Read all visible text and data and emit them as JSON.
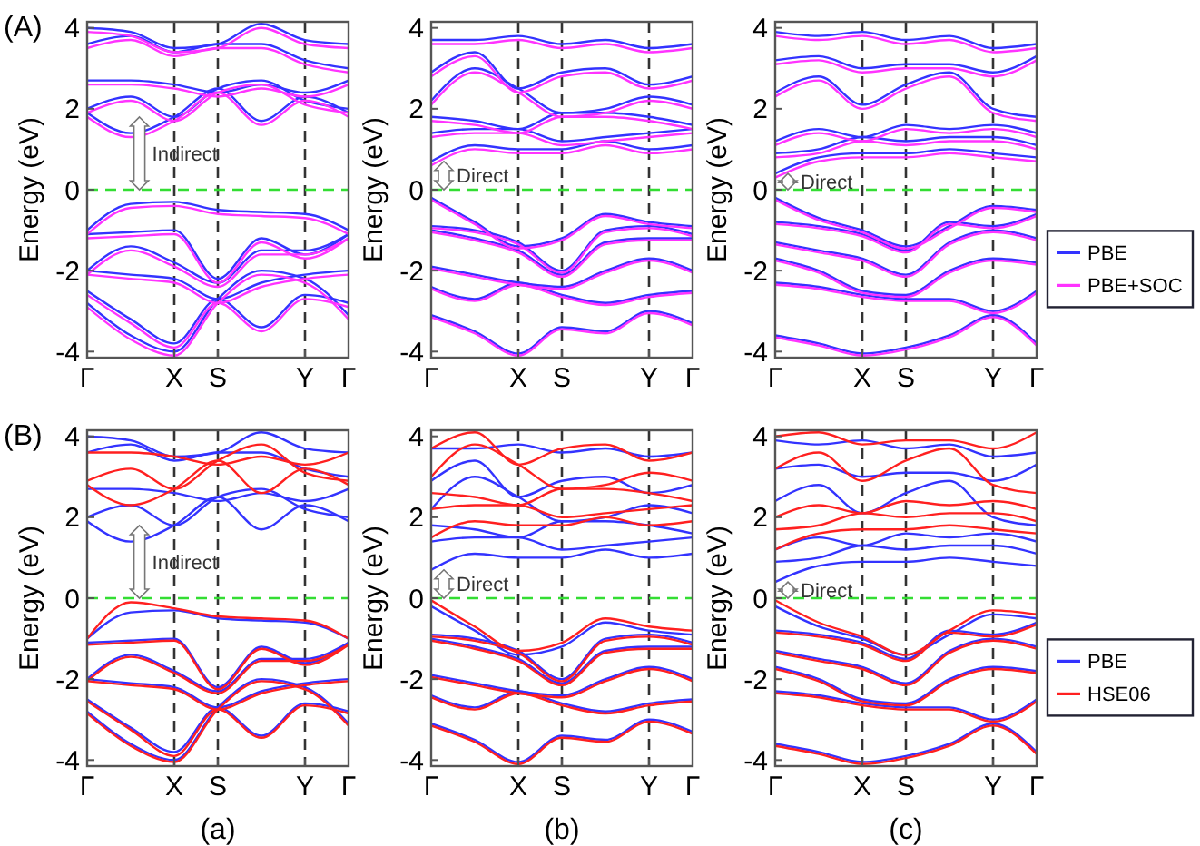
{
  "chart_data": [
    {
      "type": "line",
      "title": "(A)",
      "ylabel": "Energy (eV)",
      "categories": [
        "Γ",
        null,
        "X",
        "S",
        null,
        "Y",
        "Γ"
      ],
      "ylim": [
        -4.15,
        4.15
      ],
      "yticks": [
        -4,
        -2,
        0,
        2,
        4
      ],
      "ref_lines": [
        {
          "axis": "x",
          "value": "X",
          "color": "#333333",
          "line_style": "dashed"
        },
        {
          "axis": "x",
          "value": "S",
          "color": "#333333",
          "line_style": "dashed"
        },
        {
          "axis": "x",
          "value": "Y",
          "color": "#333333",
          "line_style": "dashed"
        },
        {
          "axis": "y",
          "value": 0,
          "color": "#33dd33",
          "line_style": "dashed"
        }
      ],
      "annotations": [
        "Indirect"
      ],
      "series": [
        {
          "color": "#3333ff",
          "values": [
            1.9,
            1.4,
            1.8,
            2.5,
            1.7,
            2.3,
            1.9
          ]
        },
        {
          "color": "#3333ff",
          "values": [
            2.0,
            2.3,
            1.8,
            2.5,
            2.7,
            2.2,
            2.0
          ]
        },
        {
          "color": "#3333ff",
          "values": [
            2.7,
            2.7,
            2.6,
            2.4,
            2.6,
            2.4,
            2.7
          ]
        },
        {
          "color": "#3333ff",
          "values": [
            3.6,
            3.8,
            3.4,
            3.6,
            3.6,
            3.2,
            3.0
          ]
        },
        {
          "color": "#3333ff",
          "values": [
            4.0,
            3.9,
            3.5,
            3.6,
            4.1,
            3.7,
            3.6
          ]
        },
        {
          "color": "#3333ff",
          "values": [
            -1.0,
            -0.35,
            -0.3,
            -0.5,
            -0.55,
            -0.6,
            -1.0
          ]
        },
        {
          "color": "#3333ff",
          "values": [
            -1.1,
            -1.05,
            -1.0,
            -2.2,
            -1.2,
            -1.6,
            -1.1
          ]
        },
        {
          "color": "#3333ff",
          "values": [
            -2.0,
            -1.4,
            -1.8,
            -2.3,
            -1.5,
            -1.5,
            -1.1
          ]
        },
        {
          "color": "#3333ff",
          "values": [
            -2.0,
            -2.1,
            -2.2,
            -2.7,
            -2.3,
            -2.1,
            -2.0
          ]
        },
        {
          "color": "#3333ff",
          "values": [
            -2.5,
            -3.2,
            -3.8,
            -2.7,
            -3.4,
            -2.6,
            -2.8
          ]
        },
        {
          "color": "#3333ff",
          "values": [
            -2.8,
            -3.6,
            -4.0,
            -2.7,
            -2.0,
            -2.2,
            -3.1
          ]
        },
        {
          "color": "#ff33ff",
          "values": [
            1.8,
            1.3,
            1.7,
            2.4,
            1.6,
            2.2,
            1.8
          ]
        },
        {
          "color": "#ff33ff",
          "values": [
            1.9,
            2.2,
            1.7,
            2.4,
            2.6,
            2.1,
            1.9
          ]
        },
        {
          "color": "#ff33ff",
          "values": [
            2.6,
            2.6,
            2.5,
            2.3,
            2.5,
            2.3,
            2.6
          ]
        },
        {
          "color": "#ff33ff",
          "values": [
            3.5,
            3.7,
            3.3,
            3.5,
            3.5,
            3.1,
            2.9
          ]
        },
        {
          "color": "#ff33ff",
          "values": [
            3.9,
            3.8,
            3.4,
            3.5,
            4.0,
            3.6,
            3.5
          ]
        },
        {
          "color": "#ff33ff",
          "values": [
            -1.1,
            -0.45,
            -0.4,
            -0.6,
            -0.65,
            -0.7,
            -1.1
          ]
        },
        {
          "color": "#ff33ff",
          "values": [
            -1.2,
            -1.15,
            -1.1,
            -2.3,
            -1.3,
            -1.7,
            -1.2
          ]
        },
        {
          "color": "#ff33ff",
          "values": [
            -2.1,
            -1.5,
            -1.9,
            -2.4,
            -1.6,
            -1.6,
            -1.2
          ]
        },
        {
          "color": "#ff33ff",
          "values": [
            -2.1,
            -2.2,
            -2.3,
            -2.8,
            -2.4,
            -2.2,
            -2.1
          ]
        },
        {
          "color": "#ff33ff",
          "values": [
            -2.6,
            -3.3,
            -3.9,
            -2.8,
            -3.5,
            -2.7,
            -2.9
          ]
        },
        {
          "color": "#ff33ff",
          "values": [
            -2.9,
            -3.7,
            -4.1,
            -2.8,
            -2.1,
            -2.3,
            -3.2
          ]
        }
      ]
    },
    {
      "type": "line",
      "ylabel": "Energy (eV)",
      "categories": [
        "Γ",
        null,
        "X",
        "S",
        null,
        "Y",
        "Γ"
      ],
      "ylim": [
        -4.15,
        4.15
      ],
      "yticks": [
        -4,
        -2,
        0,
        2,
        4
      ],
      "ref_lines": [
        {
          "axis": "x",
          "value": "X",
          "color": "#333333",
          "line_style": "dashed"
        },
        {
          "axis": "x",
          "value": "S",
          "color": "#333333",
          "line_style": "dashed"
        },
        {
          "axis": "x",
          "value": "Y",
          "color": "#333333",
          "line_style": "dashed"
        },
        {
          "axis": "y",
          "value": 0,
          "color": "#33dd33",
          "line_style": "dashed"
        }
      ],
      "annotations": [
        {
          "text": "Direct",
          "x": "Γ",
          "y": 0.7
        }
      ],
      "series": [
        {
          "color": "#3333ff",
          "values": [
            0.7,
            1.1,
            1.0,
            1.0,
            1.2,
            1.0,
            1.1
          ]
        },
        {
          "color": "#3333ff",
          "values": [
            1.4,
            1.5,
            1.5,
            1.2,
            1.3,
            1.4,
            1.5
          ]
        },
        {
          "color": "#3333ff",
          "values": [
            1.8,
            1.7,
            1.5,
            1.9,
            1.9,
            1.8,
            1.6
          ]
        },
        {
          "color": "#3333ff",
          "values": [
            2.2,
            3.0,
            2.5,
            1.9,
            2.0,
            2.3,
            2.1
          ]
        },
        {
          "color": "#3333ff",
          "values": [
            2.9,
            3.4,
            2.5,
            2.9,
            3.0,
            2.6,
            2.8
          ]
        },
        {
          "color": "#3333ff",
          "values": [
            3.7,
            3.7,
            3.8,
            3.6,
            3.7,
            3.5,
            3.6
          ]
        },
        {
          "color": "#3333ff",
          "values": [
            -0.2,
            -0.8,
            -1.4,
            -1.2,
            -0.6,
            -0.8,
            -0.9
          ]
        },
        {
          "color": "#3333ff",
          "values": [
            -0.9,
            -1.0,
            -1.3,
            -2.0,
            -1.0,
            -0.9,
            -1.1
          ]
        },
        {
          "color": "#3333ff",
          "values": [
            -1.0,
            -1.2,
            -1.5,
            -2.1,
            -1.3,
            -1.2,
            -1.2
          ]
        },
        {
          "color": "#3333ff",
          "values": [
            -1.9,
            -2.1,
            -2.3,
            -2.4,
            -2.0,
            -1.7,
            -2.0
          ]
        },
        {
          "color": "#3333ff",
          "values": [
            -2.4,
            -2.7,
            -2.3,
            -2.6,
            -2.8,
            -2.6,
            -2.5
          ]
        },
        {
          "color": "#3333ff",
          "values": [
            -3.1,
            -3.5,
            -4.05,
            -3.4,
            -3.5,
            -3.0,
            -3.3
          ]
        },
        {
          "color": "#ff33ff",
          "values": [
            0.6,
            1.0,
            0.9,
            0.9,
            1.1,
            0.9,
            1.0
          ]
        },
        {
          "color": "#ff33ff",
          "values": [
            1.3,
            1.4,
            1.4,
            1.1,
            1.2,
            1.3,
            1.4
          ]
        },
        {
          "color": "#ff33ff",
          "values": [
            1.7,
            1.6,
            1.4,
            1.8,
            1.8,
            1.7,
            1.5
          ]
        },
        {
          "color": "#ff33ff",
          "values": [
            2.1,
            2.9,
            2.4,
            1.8,
            1.9,
            2.2,
            2.0
          ]
        },
        {
          "color": "#ff33ff",
          "values": [
            2.8,
            3.3,
            2.4,
            2.8,
            2.9,
            2.5,
            2.7
          ]
        },
        {
          "color": "#ff33ff",
          "values": [
            3.6,
            3.6,
            3.7,
            3.5,
            3.6,
            3.4,
            3.5
          ]
        },
        {
          "color": "#ff33ff",
          "values": [
            -0.25,
            -0.85,
            -1.45,
            -1.25,
            -0.65,
            -0.85,
            -0.95
          ]
        },
        {
          "color": "#ff33ff",
          "values": [
            -0.95,
            -1.05,
            -1.35,
            -2.05,
            -1.05,
            -0.95,
            -1.15
          ]
        },
        {
          "color": "#ff33ff",
          "values": [
            -1.05,
            -1.25,
            -1.55,
            -2.15,
            -1.35,
            -1.25,
            -1.25
          ]
        },
        {
          "color": "#ff33ff",
          "values": [
            -1.95,
            -2.15,
            -2.35,
            -2.45,
            -2.05,
            -1.75,
            -2.05
          ]
        },
        {
          "color": "#ff33ff",
          "values": [
            -2.45,
            -2.75,
            -2.35,
            -2.65,
            -2.85,
            -2.65,
            -2.55
          ]
        },
        {
          "color": "#ff33ff",
          "values": [
            -3.15,
            -3.55,
            -4.1,
            -3.45,
            -3.55,
            -3.05,
            -3.35
          ]
        }
      ]
    },
    {
      "type": "line",
      "ylabel": "Energy (eV)",
      "legend": "right",
      "categories": [
        "Γ",
        null,
        "X",
        "S",
        null,
        "Y",
        "Γ"
      ],
      "ylim": [
        -4.15,
        4.15
      ],
      "yticks": [
        -4,
        -2,
        0,
        2,
        4
      ],
      "ref_lines": [
        {
          "axis": "x",
          "value": "X",
          "color": "#333333",
          "line_style": "dashed"
        },
        {
          "axis": "x",
          "value": "S",
          "color": "#333333",
          "line_style": "dashed"
        },
        {
          "axis": "x",
          "value": "Y",
          "color": "#333333",
          "line_style": "dashed"
        },
        {
          "axis": "y",
          "value": 0,
          "color": "#33dd33",
          "line_style": "dashed"
        }
      ],
      "annotations": [
        {
          "text": "Direct",
          "x": "Γ",
          "y": 0.4
        }
      ],
      "series": [
        {
          "name": "PBE",
          "color": "#3333ff",
          "values": [
            0.4,
            0.8,
            0.9,
            0.9,
            1.0,
            0.9,
            0.8
          ]
        },
        {
          "color": "#3333ff",
          "values": [
            0.9,
            1.0,
            1.3,
            1.2,
            1.3,
            1.3,
            1.1
          ]
        },
        {
          "color": "#3333ff",
          "values": [
            1.2,
            1.5,
            1.3,
            1.6,
            1.5,
            1.6,
            1.4
          ]
        },
        {
          "color": "#3333ff",
          "values": [
            2.4,
            2.8,
            2.1,
            2.6,
            2.9,
            2.0,
            1.8
          ]
        },
        {
          "color": "#3333ff",
          "values": [
            3.2,
            3.3,
            3.0,
            3.1,
            3.1,
            2.9,
            3.3
          ]
        },
        {
          "color": "#3333ff",
          "values": [
            3.9,
            3.8,
            3.9,
            3.7,
            3.8,
            3.5,
            3.6
          ]
        },
        {
          "color": "#3333ff",
          "values": [
            -0.2,
            -0.7,
            -1.0,
            -1.4,
            -0.9,
            -0.4,
            -0.5
          ]
        },
        {
          "color": "#3333ff",
          "values": [
            -0.8,
            -0.9,
            -1.1,
            -1.5,
            -0.8,
            -0.9,
            -0.6
          ]
        },
        {
          "color": "#3333ff",
          "values": [
            -1.3,
            -1.5,
            -1.7,
            -2.1,
            -1.3,
            -1.0,
            -1.2
          ]
        },
        {
          "color": "#3333ff",
          "values": [
            -1.7,
            -2.0,
            -2.5,
            -2.6,
            -2.0,
            -1.7,
            -1.8
          ]
        },
        {
          "color": "#3333ff",
          "values": [
            -2.3,
            -2.4,
            -2.6,
            -2.7,
            -2.7,
            -3.0,
            -2.5
          ]
        },
        {
          "color": "#3333ff",
          "values": [
            -3.6,
            -3.8,
            -4.05,
            -3.9,
            -3.6,
            -3.1,
            -3.8
          ]
        },
        {
          "name": "PBE+SOC",
          "color": "#ff33ff",
          "values": [
            0.3,
            0.7,
            0.8,
            0.8,
            0.9,
            0.8,
            0.7
          ]
        },
        {
          "color": "#ff33ff",
          "values": [
            0.8,
            0.9,
            1.2,
            1.1,
            1.2,
            1.2,
            1.0
          ]
        },
        {
          "color": "#ff33ff",
          "values": [
            1.1,
            1.4,
            1.2,
            1.5,
            1.4,
            1.5,
            1.3
          ]
        },
        {
          "color": "#ff33ff",
          "values": [
            2.3,
            2.7,
            2.0,
            2.5,
            2.8,
            1.9,
            1.7
          ]
        },
        {
          "color": "#ff33ff",
          "values": [
            3.1,
            3.2,
            2.9,
            3.0,
            3.0,
            2.8,
            3.2
          ]
        },
        {
          "color": "#ff33ff",
          "values": [
            3.8,
            3.7,
            3.8,
            3.6,
            3.7,
            3.4,
            3.5
          ]
        },
        {
          "color": "#ff33ff",
          "values": [
            -0.25,
            -0.75,
            -1.05,
            -1.45,
            -0.95,
            -0.45,
            -0.55
          ]
        },
        {
          "color": "#ff33ff",
          "values": [
            -0.85,
            -0.95,
            -1.15,
            -1.55,
            -0.85,
            -0.95,
            -0.65
          ]
        },
        {
          "color": "#ff33ff",
          "values": [
            -1.35,
            -1.55,
            -1.75,
            -2.15,
            -1.35,
            -1.05,
            -1.25
          ]
        },
        {
          "color": "#ff33ff",
          "values": [
            -1.75,
            -2.05,
            -2.55,
            -2.65,
            -2.05,
            -1.75,
            -1.85
          ]
        },
        {
          "color": "#ff33ff",
          "values": [
            -2.35,
            -2.45,
            -2.65,
            -2.75,
            -2.75,
            -3.05,
            -2.55
          ]
        },
        {
          "color": "#ff33ff",
          "values": [
            -3.65,
            -3.85,
            -4.1,
            -3.95,
            -3.65,
            -3.15,
            -3.85
          ]
        }
      ]
    },
    {
      "type": "line",
      "title": "(B)",
      "xlabel": "(a)",
      "ylabel": "Energy (eV)",
      "categories": [
        "Γ",
        null,
        "X",
        "S",
        null,
        "Y",
        "Γ"
      ],
      "ylim": [
        -4.15,
        4.15
      ],
      "yticks": [
        -4,
        -2,
        0,
        2,
        4
      ],
      "ref_lines": [
        {
          "axis": "x",
          "value": "X",
          "color": "#333333",
          "line_style": "dashed"
        },
        {
          "axis": "x",
          "value": "S",
          "color": "#333333",
          "line_style": "dashed"
        },
        {
          "axis": "x",
          "value": "Y",
          "color": "#333333",
          "line_style": "dashed"
        },
        {
          "axis": "y",
          "value": 0,
          "color": "#33dd33",
          "line_style": "dashed"
        }
      ],
      "annotations": [
        "Indirect"
      ],
      "series": [
        {
          "color": "#3333ff",
          "values": [
            1.9,
            1.4,
            1.8,
            2.5,
            1.7,
            2.3,
            1.9
          ]
        },
        {
          "color": "#3333ff",
          "values": [
            2.0,
            2.3,
            1.8,
            2.5,
            2.7,
            2.2,
            2.0
          ]
        },
        {
          "color": "#3333ff",
          "values": [
            2.7,
            2.7,
            2.6,
            2.4,
            2.6,
            2.4,
            2.7
          ]
        },
        {
          "color": "#3333ff",
          "values": [
            3.6,
            3.8,
            3.4,
            3.6,
            3.6,
            3.2,
            3.0
          ]
        },
        {
          "color": "#3333ff",
          "values": [
            4.0,
            3.9,
            3.5,
            3.6,
            4.1,
            3.7,
            3.6
          ]
        },
        {
          "color": "#3333ff",
          "values": [
            -1.0,
            -0.35,
            -0.3,
            -0.5,
            -0.55,
            -0.6,
            -1.0
          ]
        },
        {
          "color": "#3333ff",
          "values": [
            -1.1,
            -1.05,
            -1.0,
            -2.2,
            -1.2,
            -1.6,
            -1.1
          ]
        },
        {
          "color": "#3333ff",
          "values": [
            -2.0,
            -1.4,
            -1.8,
            -2.3,
            -1.5,
            -1.5,
            -1.1
          ]
        },
        {
          "color": "#3333ff",
          "values": [
            -2.0,
            -2.1,
            -2.2,
            -2.7,
            -2.3,
            -2.1,
            -2.0
          ]
        },
        {
          "color": "#3333ff",
          "values": [
            -2.5,
            -3.2,
            -3.8,
            -2.7,
            -3.4,
            -2.6,
            -2.8
          ]
        },
        {
          "color": "#3333ff",
          "values": [
            -2.8,
            -3.6,
            -4.0,
            -2.7,
            -2.0,
            -2.2,
            -3.1
          ]
        },
        {
          "color": "#ff2020",
          "values": [
            2.8,
            2.3,
            2.7,
            3.4,
            2.6,
            3.2,
            2.8
          ]
        },
        {
          "color": "#ff2020",
          "values": [
            2.9,
            3.2,
            2.7,
            3.4,
            3.8,
            3.1,
            2.9
          ]
        },
        {
          "color": "#ff2020",
          "values": [
            3.6,
            3.6,
            3.5,
            3.3,
            3.5,
            3.3,
            3.6
          ]
        },
        {
          "color": "#ff2020",
          "values": [
            -1.0,
            -0.1,
            -0.25,
            -0.45,
            -0.5,
            -0.55,
            -1.0
          ]
        },
        {
          "color": "#ff2020",
          "values": [
            -1.15,
            -1.1,
            -1.05,
            -2.25,
            -1.25,
            -1.65,
            -1.15
          ]
        },
        {
          "color": "#ff2020",
          "values": [
            -2.05,
            -1.45,
            -1.85,
            -2.35,
            -1.55,
            -1.55,
            -1.15
          ]
        },
        {
          "color": "#ff2020",
          "values": [
            -2.05,
            -2.15,
            -2.25,
            -2.75,
            -2.35,
            -2.15,
            -2.05
          ]
        },
        {
          "color": "#ff2020",
          "values": [
            -2.55,
            -3.25,
            -3.9,
            -2.75,
            -3.45,
            -2.65,
            -2.85
          ]
        },
        {
          "color": "#ff2020",
          "values": [
            -2.85,
            -3.65,
            -4.05,
            -2.75,
            -2.05,
            -2.25,
            -3.15
          ]
        }
      ]
    },
    {
      "type": "line",
      "xlabel": "(b)",
      "ylabel": "Energy (eV)",
      "categories": [
        "Γ",
        null,
        "X",
        "S",
        null,
        "Y",
        "Γ"
      ],
      "ylim": [
        -4.15,
        4.15
      ],
      "yticks": [
        -4,
        -2,
        0,
        2,
        4
      ],
      "ref_lines": [
        {
          "axis": "x",
          "value": "X",
          "color": "#333333",
          "line_style": "dashed"
        },
        {
          "axis": "x",
          "value": "S",
          "color": "#333333",
          "line_style": "dashed"
        },
        {
          "axis": "x",
          "value": "Y",
          "color": "#333333",
          "line_style": "dashed"
        },
        {
          "axis": "y",
          "value": 0,
          "color": "#33dd33",
          "line_style": "dashed"
        }
      ],
      "annotations": [
        {
          "text": "Direct",
          "x": "Γ",
          "y": 0.7
        }
      ],
      "series": [
        {
          "color": "#3333ff",
          "values": [
            0.7,
            1.1,
            1.0,
            1.0,
            1.2,
            1.0,
            1.1
          ]
        },
        {
          "color": "#3333ff",
          "values": [
            1.4,
            1.5,
            1.5,
            1.2,
            1.3,
            1.4,
            1.5
          ]
        },
        {
          "color": "#3333ff",
          "values": [
            1.8,
            1.7,
            1.5,
            1.9,
            1.9,
            1.8,
            1.6
          ]
        },
        {
          "color": "#3333ff",
          "values": [
            2.2,
            3.0,
            2.5,
            1.9,
            2.0,
            2.3,
            2.1
          ]
        },
        {
          "color": "#3333ff",
          "values": [
            2.9,
            3.4,
            2.5,
            2.9,
            3.0,
            2.6,
            2.8
          ]
        },
        {
          "color": "#3333ff",
          "values": [
            3.7,
            3.7,
            3.8,
            3.6,
            3.7,
            3.5,
            3.6
          ]
        },
        {
          "color": "#3333ff",
          "values": [
            -0.2,
            -0.8,
            -1.4,
            -1.2,
            -0.6,
            -0.8,
            -0.9
          ]
        },
        {
          "color": "#3333ff",
          "values": [
            -0.9,
            -1.0,
            -1.3,
            -2.0,
            -1.0,
            -0.9,
            -1.1
          ]
        },
        {
          "color": "#3333ff",
          "values": [
            -1.0,
            -1.2,
            -1.5,
            -2.1,
            -1.3,
            -1.2,
            -1.2
          ]
        },
        {
          "color": "#3333ff",
          "values": [
            -1.9,
            -2.1,
            -2.3,
            -2.4,
            -2.0,
            -1.7,
            -2.0
          ]
        },
        {
          "color": "#3333ff",
          "values": [
            -2.4,
            -2.7,
            -2.3,
            -2.6,
            -2.8,
            -2.6,
            -2.5
          ]
        },
        {
          "color": "#3333ff",
          "values": [
            -3.1,
            -3.5,
            -4.05,
            -3.4,
            -3.5,
            -3.0,
            -3.3
          ]
        },
        {
          "color": "#ff2020",
          "values": [
            1.5,
            1.9,
            1.8,
            1.8,
            2.0,
            1.8,
            1.9
          ]
        },
        {
          "color": "#ff2020",
          "values": [
            2.2,
            2.3,
            2.3,
            2.0,
            2.1,
            2.2,
            2.3
          ]
        },
        {
          "color": "#ff2020",
          "values": [
            2.6,
            2.5,
            2.3,
            2.7,
            2.7,
            2.6,
            2.4
          ]
        },
        {
          "color": "#ff2020",
          "values": [
            3.0,
            3.8,
            3.3,
            2.7,
            2.8,
            3.1,
            2.9
          ]
        },
        {
          "color": "#ff2020",
          "values": [
            3.7,
            4.1,
            3.3,
            3.7,
            3.8,
            3.4,
            3.6
          ]
        },
        {
          "color": "#ff2020",
          "values": [
            -0.05,
            -0.7,
            -1.3,
            -1.1,
            -0.5,
            -0.7,
            -0.8
          ]
        },
        {
          "color": "#ff2020",
          "values": [
            -0.95,
            -1.05,
            -1.35,
            -2.05,
            -1.05,
            -0.95,
            -1.15
          ]
        },
        {
          "color": "#ff2020",
          "values": [
            -1.05,
            -1.25,
            -1.55,
            -2.15,
            -1.35,
            -1.25,
            -1.25
          ]
        },
        {
          "color": "#ff2020",
          "values": [
            -1.95,
            -2.15,
            -2.35,
            -2.45,
            -2.05,
            -1.75,
            -2.05
          ]
        },
        {
          "color": "#ff2020",
          "values": [
            -2.45,
            -2.75,
            -2.35,
            -2.65,
            -2.85,
            -2.65,
            -2.55
          ]
        },
        {
          "color": "#ff2020",
          "values": [
            -3.15,
            -3.55,
            -4.1,
            -3.45,
            -3.55,
            -3.05,
            -3.35
          ]
        }
      ]
    },
    {
      "type": "line",
      "xlabel": "(c)",
      "ylabel": "Energy (eV)",
      "legend": "right",
      "categories": [
        "Γ",
        null,
        "X",
        "S",
        null,
        "Y",
        "Γ"
      ],
      "ylim": [
        -4.15,
        4.15
      ],
      "yticks": [
        -4,
        -2,
        0,
        2,
        4
      ],
      "ref_lines": [
        {
          "axis": "x",
          "value": "X",
          "color": "#333333",
          "line_style": "dashed"
        },
        {
          "axis": "x",
          "value": "S",
          "color": "#333333",
          "line_style": "dashed"
        },
        {
          "axis": "x",
          "value": "Y",
          "color": "#333333",
          "line_style": "dashed"
        },
        {
          "axis": "y",
          "value": 0,
          "color": "#33dd33",
          "line_style": "dashed"
        }
      ],
      "annotations": [
        {
          "text": "Direct",
          "x": "Γ",
          "y": 0.4
        }
      ],
      "series": [
        {
          "name": "PBE",
          "color": "#3333ff",
          "values": [
            0.4,
            0.8,
            0.9,
            0.9,
            1.0,
            0.9,
            0.8
          ]
        },
        {
          "color": "#3333ff",
          "values": [
            0.9,
            1.0,
            1.3,
            1.2,
            1.3,
            1.3,
            1.1
          ]
        },
        {
          "color": "#3333ff",
          "values": [
            1.2,
            1.5,
            1.3,
            1.6,
            1.5,
            1.6,
            1.4
          ]
        },
        {
          "color": "#3333ff",
          "values": [
            2.4,
            2.8,
            2.1,
            2.6,
            2.9,
            2.0,
            1.8
          ]
        },
        {
          "color": "#3333ff",
          "values": [
            3.2,
            3.3,
            3.0,
            3.1,
            3.1,
            2.9,
            3.3
          ]
        },
        {
          "color": "#3333ff",
          "values": [
            3.9,
            3.8,
            3.9,
            3.7,
            3.8,
            3.5,
            3.6
          ]
        },
        {
          "color": "#3333ff",
          "values": [
            -0.2,
            -0.7,
            -1.0,
            -1.4,
            -0.9,
            -0.4,
            -0.5
          ]
        },
        {
          "color": "#3333ff",
          "values": [
            -0.8,
            -0.9,
            -1.1,
            -1.5,
            -0.8,
            -0.9,
            -0.6
          ]
        },
        {
          "color": "#3333ff",
          "values": [
            -1.3,
            -1.5,
            -1.7,
            -2.1,
            -1.3,
            -1.0,
            -1.2
          ]
        },
        {
          "color": "#3333ff",
          "values": [
            -1.7,
            -2.0,
            -2.5,
            -2.6,
            -2.0,
            -1.7,
            -1.8
          ]
        },
        {
          "color": "#3333ff",
          "values": [
            -2.3,
            -2.4,
            -2.6,
            -2.7,
            -2.7,
            -3.0,
            -2.5
          ]
        },
        {
          "color": "#3333ff",
          "values": [
            -3.6,
            -3.8,
            -4.05,
            -3.9,
            -3.6,
            -3.1,
            -3.8
          ]
        },
        {
          "name": "HSE06",
          "color": "#ff2020",
          "values": [
            1.2,
            1.6,
            1.7,
            1.7,
            1.8,
            1.7,
            1.6
          ]
        },
        {
          "color": "#ff2020",
          "values": [
            1.7,
            1.8,
            2.1,
            2.0,
            2.1,
            2.1,
            1.9
          ]
        },
        {
          "color": "#ff2020",
          "values": [
            2.0,
            2.3,
            2.1,
            2.4,
            2.3,
            2.4,
            2.2
          ]
        },
        {
          "color": "#ff2020",
          "values": [
            3.2,
            3.6,
            2.9,
            3.4,
            3.7,
            2.8,
            2.6
          ]
        },
        {
          "color": "#ff2020",
          "values": [
            4.0,
            4.1,
            3.8,
            3.9,
            3.9,
            3.7,
            4.1
          ]
        },
        {
          "color": "#ff2020",
          "values": [
            -0.05,
            -0.6,
            -0.95,
            -1.4,
            -0.8,
            -0.3,
            -0.4
          ]
        },
        {
          "color": "#ff2020",
          "values": [
            -0.85,
            -0.95,
            -1.15,
            -1.55,
            -0.85,
            -0.95,
            -0.65
          ]
        },
        {
          "color": "#ff2020",
          "values": [
            -1.35,
            -1.55,
            -1.75,
            -2.15,
            -1.35,
            -1.05,
            -1.25
          ]
        },
        {
          "color": "#ff2020",
          "values": [
            -1.75,
            -2.05,
            -2.55,
            -2.65,
            -2.05,
            -1.75,
            -1.85
          ]
        },
        {
          "color": "#ff2020",
          "values": [
            -2.35,
            -2.45,
            -2.65,
            -2.75,
            -2.75,
            -3.05,
            -2.55
          ]
        },
        {
          "color": "#ff2020",
          "values": [
            -3.65,
            -3.85,
            -4.1,
            -3.95,
            -3.65,
            -3.15,
            -3.85
          ]
        }
      ]
    }
  ]
}
